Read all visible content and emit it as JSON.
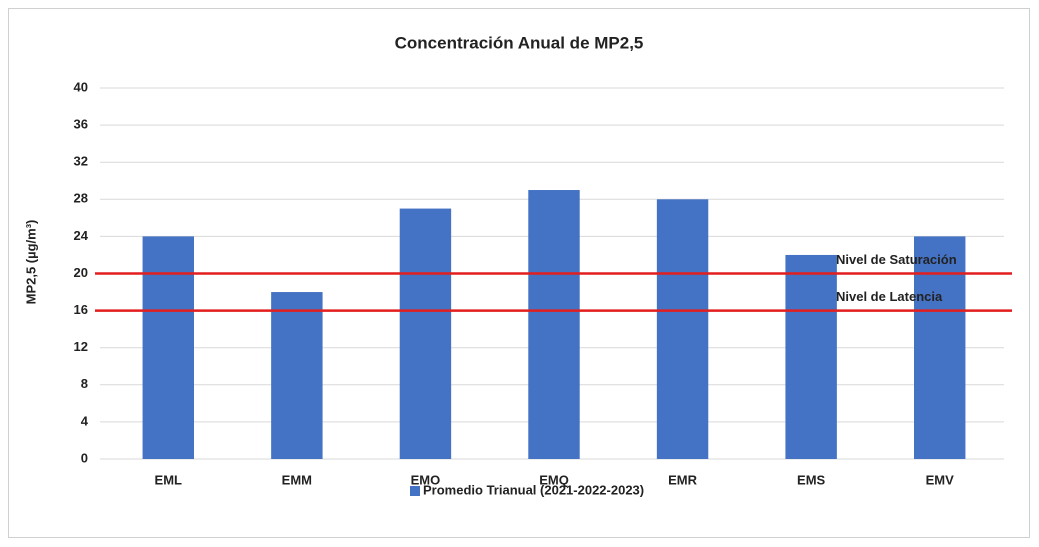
{
  "chart_data": {
    "type": "bar",
    "title": "Concentración Anual de MP2,5",
    "y_label": "MP2,5 (µg/m³)",
    "categories": [
      "EML",
      "EMM",
      "EMO",
      "EMQ",
      "EMR",
      "EMS",
      "EMV"
    ],
    "series": [
      {
        "name": "Promedio Trianual (2021-2022-2023)",
        "color": "#4472c4",
        "values": [
          24,
          18,
          27,
          29,
          28,
          22,
          24
        ]
      }
    ],
    "ylim": [
      0,
      40
    ],
    "yticks": [
      0,
      4,
      8,
      12,
      16,
      20,
      24,
      28,
      32,
      36,
      40
    ],
    "grid": true,
    "reference_lines": [
      {
        "value": 20,
        "label": "Nivel de Saturación",
        "color": "#e31e1e"
      },
      {
        "value": 16,
        "label": "Nivel de Latencia",
        "color": "#e31e1e"
      }
    ],
    "legend": "bottom"
  }
}
